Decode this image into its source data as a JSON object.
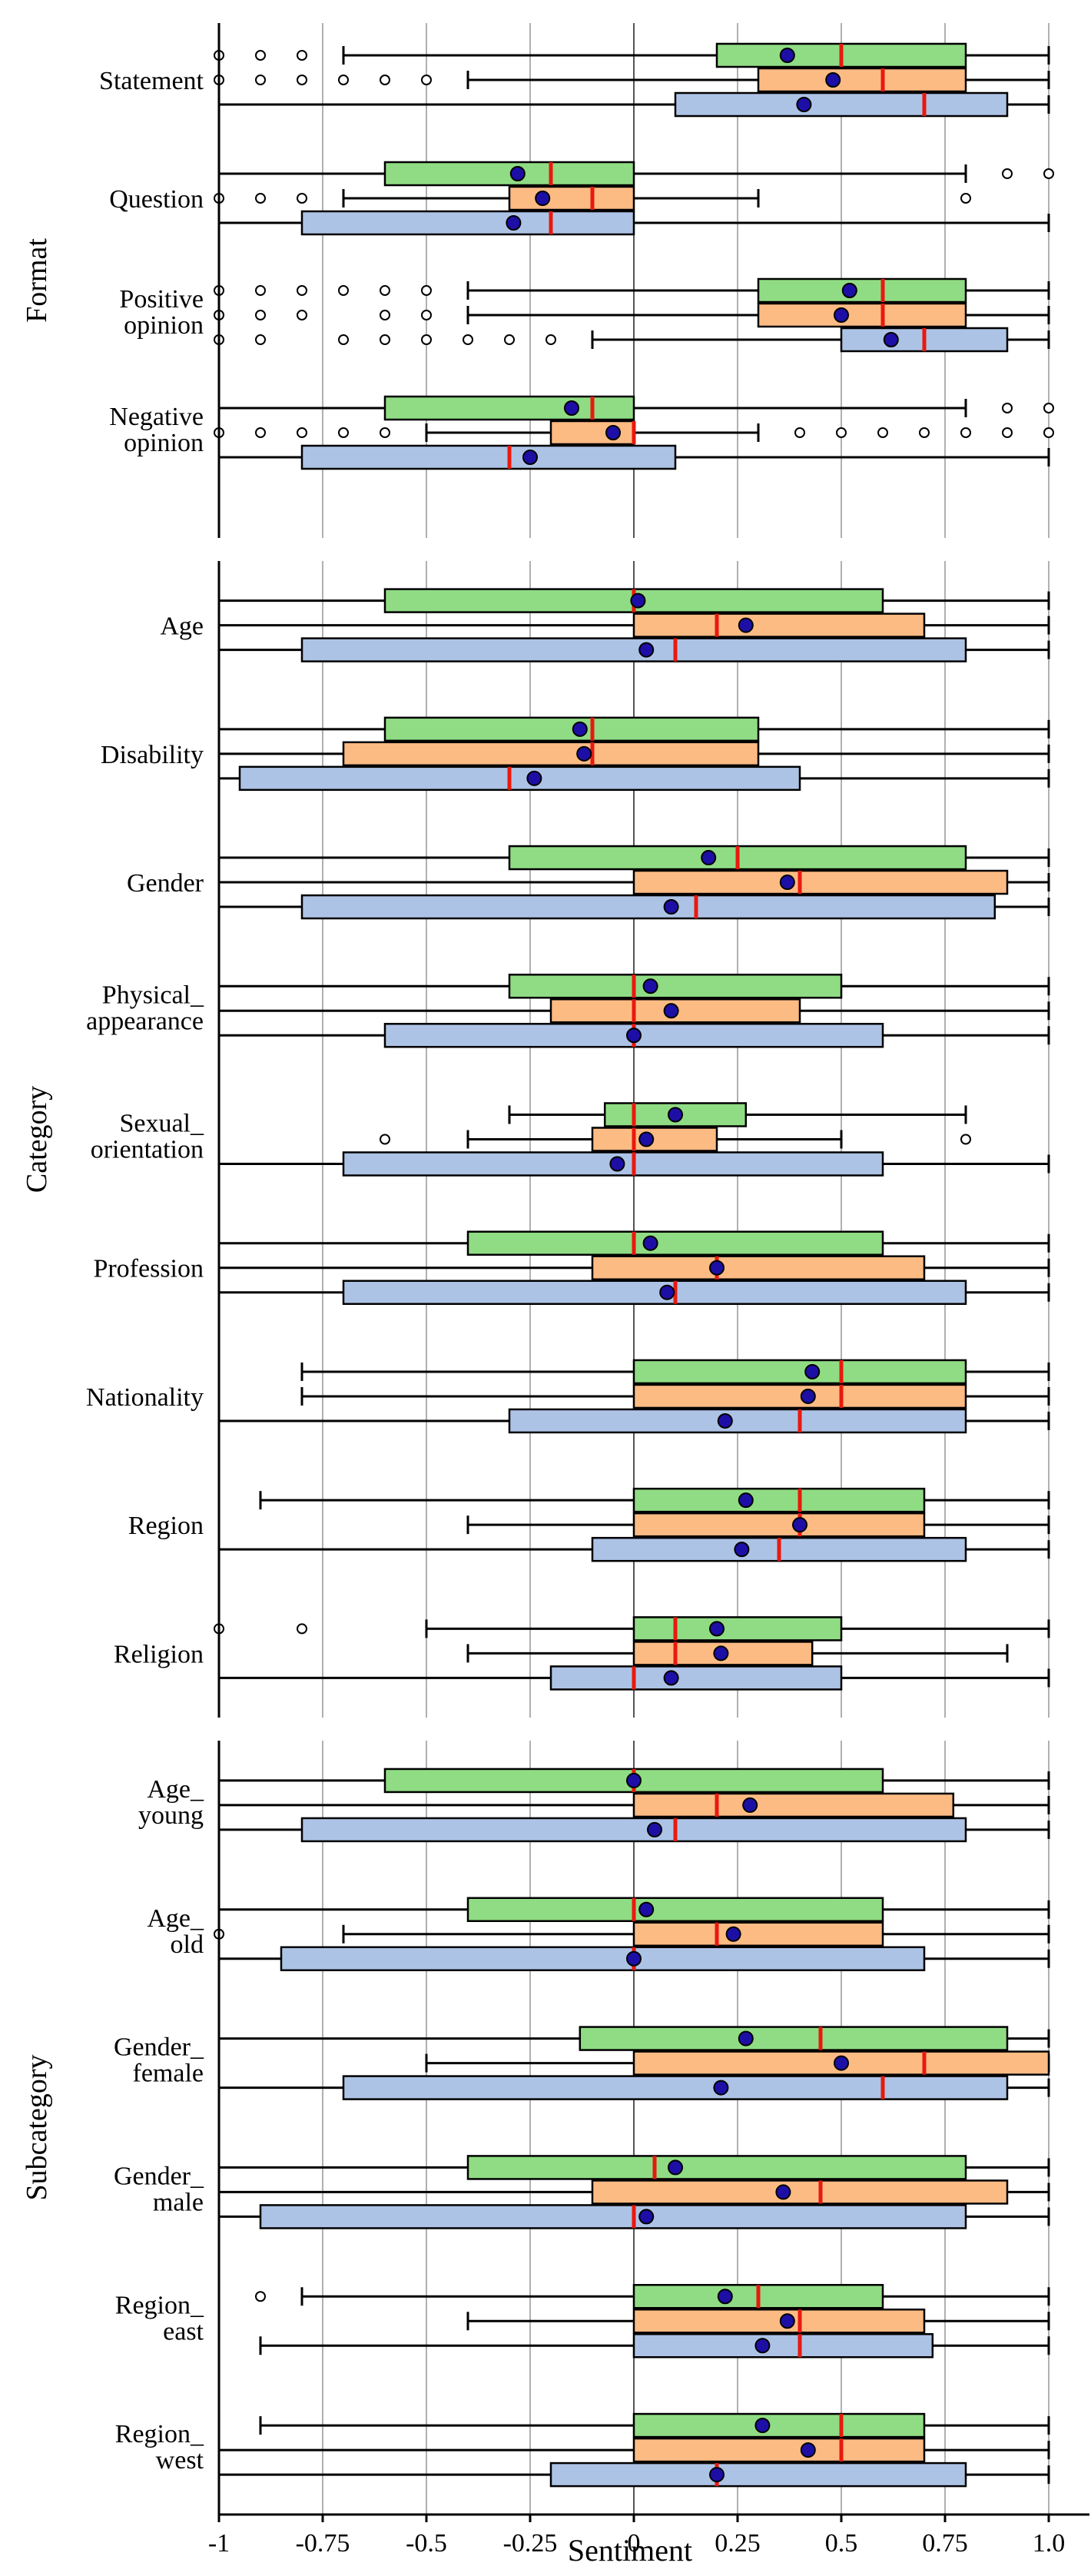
{
  "colors": {
    "series_1": "#90dc84",
    "series_2": "#fdbb84",
    "series_3": "#adc3e6",
    "median": "#e8190e",
    "mean_fill": "#1d0fa6",
    "grid": "#b0b0b0",
    "axis": "#000000"
  },
  "chart_data": {
    "type": "box",
    "xlabel": "Sentiment",
    "xlim": [
      -1,
      1.1
    ],
    "x_ticks": [
      -1,
      -0.75,
      -0.5,
      -0.25,
      0,
      0.25,
      0.5,
      0.75,
      1.0
    ],
    "x_tick_labels": [
      "-1",
      "-0.75",
      "-0.5",
      "-0.25",
      "0",
      "0.25",
      "0.5",
      "0.75",
      "1.0"
    ],
    "series_names": [
      "series_1",
      "series_2",
      "series_3"
    ],
    "panels": [
      {
        "title": "Format",
        "groups": [
          {
            "label": [
              "Statement"
            ],
            "boxes": [
              {
                "whisker_low": -0.7,
                "q1": 0.2,
                "median": 0.5,
                "q3": 0.8,
                "whisker_high": 1.0,
                "mean": 0.37,
                "outliers": [
                  -1,
                  -0.9,
                  -0.8
                ]
              },
              {
                "whisker_low": -0.4,
                "q1": 0.3,
                "median": 0.6,
                "q3": 0.8,
                "whisker_high": 1.0,
                "mean": 0.48,
                "outliers": [
                  -1,
                  -0.9,
                  -0.8,
                  -0.7,
                  -0.6,
                  -0.5
                ]
              },
              {
                "whisker_low": -1.0,
                "q1": 0.1,
                "median": 0.7,
                "q3": 0.9,
                "whisker_high": 1.0,
                "mean": 0.41,
                "outliers": []
              }
            ]
          },
          {
            "label": [
              "Question"
            ],
            "boxes": [
              {
                "whisker_low": -1.0,
                "q1": -0.6,
                "median": -0.2,
                "q3": 0.0,
                "whisker_high": 0.8,
                "mean": -0.28,
                "outliers": [
                  0.9,
                  1.0
                ]
              },
              {
                "whisker_low": -0.7,
                "q1": -0.3,
                "median": -0.1,
                "q3": 0.0,
                "whisker_high": 0.3,
                "mean": -0.22,
                "outliers": [
                  -1,
                  -0.9,
                  -0.8,
                  0.8
                ]
              },
              {
                "whisker_low": -1.0,
                "q1": -0.8,
                "median": -0.2,
                "q3": 0.0,
                "whisker_high": 1.0,
                "mean": -0.29,
                "outliers": []
              }
            ]
          },
          {
            "label": [
              "Positive",
              "opinion"
            ],
            "boxes": [
              {
                "whisker_low": -0.4,
                "q1": 0.3,
                "median": 0.6,
                "q3": 0.8,
                "whisker_high": 1.0,
                "mean": 0.52,
                "outliers": [
                  -1,
                  -0.9,
                  -0.8,
                  -0.7,
                  -0.6,
                  -0.5
                ]
              },
              {
                "whisker_low": -0.4,
                "q1": 0.3,
                "median": 0.6,
                "q3": 0.8,
                "whisker_high": 1.0,
                "mean": 0.5,
                "outliers": [
                  -1,
                  -0.9,
                  -0.8,
                  -0.6,
                  -0.5
                ]
              },
              {
                "whisker_low": -0.1,
                "q1": 0.5,
                "median": 0.7,
                "q3": 0.9,
                "whisker_high": 1.0,
                "mean": 0.62,
                "outliers": [
                  -1,
                  -0.9,
                  -0.7,
                  -0.6,
                  -0.5,
                  -0.4,
                  -0.3,
                  -0.2
                ]
              }
            ]
          },
          {
            "label": [
              "Negative",
              "opinion"
            ],
            "boxes": [
              {
                "whisker_low": -1.0,
                "q1": -0.6,
                "median": -0.1,
                "q3": 0.0,
                "whisker_high": 0.8,
                "mean": -0.15,
                "outliers": [
                  0.9,
                  1.0
                ]
              },
              {
                "whisker_low": -0.5,
                "q1": -0.2,
                "median": 0.0,
                "q3": 0.0,
                "whisker_high": 0.3,
                "mean": -0.05,
                "outliers": [
                  -1,
                  -0.9,
                  -0.8,
                  -0.7,
                  -0.6,
                  0.4,
                  0.5,
                  0.6,
                  0.7,
                  0.8,
                  0.9,
                  1.0
                ]
              },
              {
                "whisker_low": -1.0,
                "q1": -0.8,
                "median": -0.3,
                "q3": 0.1,
                "whisker_high": 1.0,
                "mean": -0.25,
                "outliers": []
              }
            ]
          }
        ]
      },
      {
        "title": "Category",
        "groups": [
          {
            "label": [
              "Age"
            ],
            "boxes": [
              {
                "whisker_low": -1.0,
                "q1": -0.6,
                "median": 0.0,
                "q3": 0.6,
                "whisker_high": 1.0,
                "mean": 0.01,
                "outliers": []
              },
              {
                "whisker_low": -1.0,
                "q1": 0.0,
                "median": 0.2,
                "q3": 0.7,
                "whisker_high": 1.0,
                "mean": 0.27,
                "outliers": []
              },
              {
                "whisker_low": -1.0,
                "q1": -0.8,
                "median": 0.1,
                "q3": 0.8,
                "whisker_high": 1.0,
                "mean": 0.03,
                "outliers": []
              }
            ]
          },
          {
            "label": [
              "Disability"
            ],
            "boxes": [
              {
                "whisker_low": -1.0,
                "q1": -0.6,
                "median": -0.1,
                "q3": 0.3,
                "whisker_high": 1.0,
                "mean": -0.13,
                "outliers": []
              },
              {
                "whisker_low": -1.0,
                "q1": -0.7,
                "median": -0.1,
                "q3": 0.3,
                "whisker_high": 1.0,
                "mean": -0.12,
                "outliers": []
              },
              {
                "whisker_low": -1.0,
                "q1": -0.95,
                "median": -0.3,
                "q3": 0.4,
                "whisker_high": 1.0,
                "mean": -0.24,
                "outliers": []
              }
            ]
          },
          {
            "label": [
              "Gender"
            ],
            "boxes": [
              {
                "whisker_low": -1.0,
                "q1": -0.3,
                "median": 0.25,
                "q3": 0.8,
                "whisker_high": 1.0,
                "mean": 0.18,
                "outliers": []
              },
              {
                "whisker_low": -1.0,
                "q1": 0.0,
                "median": 0.4,
                "q3": 0.9,
                "whisker_high": 1.0,
                "mean": 0.37,
                "outliers": []
              },
              {
                "whisker_low": -1.0,
                "q1": -0.8,
                "median": 0.15,
                "q3": 0.87,
                "whisker_high": 1.0,
                "mean": 0.09,
                "outliers": []
              }
            ]
          },
          {
            "label": [
              "Physical_",
              "appearance"
            ],
            "boxes": [
              {
                "whisker_low": -1.0,
                "q1": -0.3,
                "median": 0.0,
                "q3": 0.5,
                "whisker_high": 1.0,
                "mean": 0.04,
                "outliers": []
              },
              {
                "whisker_low": -1.0,
                "q1": -0.2,
                "median": 0.0,
                "q3": 0.4,
                "whisker_high": 1.0,
                "mean": 0.09,
                "outliers": []
              },
              {
                "whisker_low": -1.0,
                "q1": -0.6,
                "median": 0.0,
                "q3": 0.6,
                "whisker_high": 1.0,
                "mean": 0.0,
                "outliers": []
              }
            ]
          },
          {
            "label": [
              "Sexual_",
              "orientation"
            ],
            "boxes": [
              {
                "whisker_low": -0.3,
                "q1": -0.07,
                "median": 0.0,
                "q3": 0.27,
                "whisker_high": 0.8,
                "mean": 0.1,
                "outliers": []
              },
              {
                "whisker_low": -0.4,
                "q1": -0.1,
                "median": 0.0,
                "q3": 0.2,
                "whisker_high": 0.5,
                "mean": 0.03,
                "outliers": [
                  -0.6,
                  0.8
                ]
              },
              {
                "whisker_low": -1.0,
                "q1": -0.7,
                "median": 0.0,
                "q3": 0.6,
                "whisker_high": 1.0,
                "mean": -0.04,
                "outliers": []
              }
            ]
          },
          {
            "label": [
              "Profession"
            ],
            "boxes": [
              {
                "whisker_low": -1.0,
                "q1": -0.4,
                "median": 0.0,
                "q3": 0.6,
                "whisker_high": 1.0,
                "mean": 0.04,
                "outliers": []
              },
              {
                "whisker_low": -1.0,
                "q1": -0.1,
                "median": 0.2,
                "q3": 0.7,
                "whisker_high": 1.0,
                "mean": 0.2,
                "outliers": []
              },
              {
                "whisker_low": -1.0,
                "q1": -0.7,
                "median": 0.1,
                "q3": 0.8,
                "whisker_high": 1.0,
                "mean": 0.08,
                "outliers": []
              }
            ]
          },
          {
            "label": [
              "Nationality"
            ],
            "boxes": [
              {
                "whisker_low": -0.8,
                "q1": 0.0,
                "median": 0.5,
                "q3": 0.8,
                "whisker_high": 1.0,
                "mean": 0.43,
                "outliers": []
              },
              {
                "whisker_low": -0.8,
                "q1": 0.0,
                "median": 0.5,
                "q3": 0.8,
                "whisker_high": 1.0,
                "mean": 0.42,
                "outliers": []
              },
              {
                "whisker_low": -1.0,
                "q1": -0.3,
                "median": 0.4,
                "q3": 0.8,
                "whisker_high": 1.0,
                "mean": 0.22,
                "outliers": []
              }
            ]
          },
          {
            "label": [
              "Region"
            ],
            "boxes": [
              {
                "whisker_low": -0.9,
                "q1": 0.0,
                "median": 0.4,
                "q3": 0.7,
                "whisker_high": 1.0,
                "mean": 0.27,
                "outliers": []
              },
              {
                "whisker_low": -0.4,
                "q1": 0.0,
                "median": 0.4,
                "q3": 0.7,
                "whisker_high": 1.0,
                "mean": 0.4,
                "outliers": []
              },
              {
                "whisker_low": -1.0,
                "q1": -0.1,
                "median": 0.35,
                "q3": 0.8,
                "whisker_high": 1.0,
                "mean": 0.26,
                "outliers": []
              }
            ]
          },
          {
            "label": [
              "Religion"
            ],
            "boxes": [
              {
                "whisker_low": -0.5,
                "q1": 0.0,
                "median": 0.1,
                "q3": 0.5,
                "whisker_high": 1.0,
                "mean": 0.2,
                "outliers": [
                  -1,
                  -0.8
                ]
              },
              {
                "whisker_low": -0.4,
                "q1": 0.0,
                "median": 0.1,
                "q3": 0.43,
                "whisker_high": 0.9,
                "mean": 0.21,
                "outliers": []
              },
              {
                "whisker_low": -1.0,
                "q1": -0.2,
                "median": 0.0,
                "q3": 0.5,
                "whisker_high": 1.0,
                "mean": 0.09,
                "outliers": []
              }
            ]
          }
        ]
      },
      {
        "title": "Subcategory",
        "groups": [
          {
            "label": [
              "Age_",
              "young"
            ],
            "boxes": [
              {
                "whisker_low": -1.0,
                "q1": -0.6,
                "median": 0.0,
                "q3": 0.6,
                "whisker_high": 1.0,
                "mean": 0.0,
                "outliers": []
              },
              {
                "whisker_low": -1.0,
                "q1": 0.0,
                "median": 0.2,
                "q3": 0.77,
                "whisker_high": 1.0,
                "mean": 0.28,
                "outliers": []
              },
              {
                "whisker_low": -1.0,
                "q1": -0.8,
                "median": 0.1,
                "q3": 0.8,
                "whisker_high": 1.0,
                "mean": 0.05,
                "outliers": []
              }
            ]
          },
          {
            "label": [
              "Age_",
              "old"
            ],
            "boxes": [
              {
                "whisker_low": -1.0,
                "q1": -0.4,
                "median": 0.0,
                "q3": 0.6,
                "whisker_high": 1.0,
                "mean": 0.03,
                "outliers": []
              },
              {
                "whisker_low": -0.7,
                "q1": 0.0,
                "median": 0.2,
                "q3": 0.6,
                "whisker_high": 1.0,
                "mean": 0.24,
                "outliers": [
                  -1
                ]
              },
              {
                "whisker_low": -1.0,
                "q1": -0.85,
                "median": 0.0,
                "q3": 0.7,
                "whisker_high": 1.0,
                "mean": 0.0,
                "outliers": []
              }
            ]
          },
          {
            "label": [
              "Gender_",
              "female"
            ],
            "boxes": [
              {
                "whisker_low": -1.0,
                "q1": -0.13,
                "median": 0.45,
                "q3": 0.9,
                "whisker_high": 1.0,
                "mean": 0.27,
                "outliers": []
              },
              {
                "whisker_low": -0.5,
                "q1": 0.0,
                "median": 0.7,
                "q3": 1.0,
                "whisker_high": 1.0,
                "mean": 0.5,
                "outliers": []
              },
              {
                "whisker_low": -1.0,
                "q1": -0.7,
                "median": 0.6,
                "q3": 0.9,
                "whisker_high": 1.0,
                "mean": 0.21,
                "outliers": []
              }
            ]
          },
          {
            "label": [
              "Gender_",
              "male"
            ],
            "boxes": [
              {
                "whisker_low": -1.0,
                "q1": -0.4,
                "median": 0.05,
                "q3": 0.8,
                "whisker_high": 1.0,
                "mean": 0.1,
                "outliers": []
              },
              {
                "whisker_low": -1.0,
                "q1": -0.1,
                "median": 0.45,
                "q3": 0.9,
                "whisker_high": 1.0,
                "mean": 0.36,
                "outliers": []
              },
              {
                "whisker_low": -1.0,
                "q1": -0.9,
                "median": 0.0,
                "q3": 0.8,
                "whisker_high": 1.0,
                "mean": 0.03,
                "outliers": []
              }
            ]
          },
          {
            "label": [
              "Region_",
              "east"
            ],
            "boxes": [
              {
                "whisker_low": -0.8,
                "q1": 0.0,
                "median": 0.3,
                "q3": 0.6,
                "whisker_high": 1.0,
                "mean": 0.22,
                "outliers": [
                  -0.9
                ]
              },
              {
                "whisker_low": -0.4,
                "q1": 0.0,
                "median": 0.4,
                "q3": 0.7,
                "whisker_high": 1.0,
                "mean": 0.37,
                "outliers": []
              },
              {
                "whisker_low": -0.9,
                "q1": 0.0,
                "median": 0.4,
                "q3": 0.72,
                "whisker_high": 1.0,
                "mean": 0.31,
                "outliers": []
              }
            ]
          },
          {
            "label": [
              "Region_",
              "west"
            ],
            "boxes": [
              {
                "whisker_low": -0.9,
                "q1": 0.0,
                "median": 0.5,
                "q3": 0.7,
                "whisker_high": 1.0,
                "mean": 0.31,
                "outliers": []
              },
              {
                "whisker_low": -1.0,
                "q1": 0.0,
                "median": 0.5,
                "q3": 0.7,
                "whisker_high": 1.0,
                "mean": 0.42,
                "outliers": []
              },
              {
                "whisker_low": -1.0,
                "q1": -0.2,
                "median": 0.2,
                "q3": 0.8,
                "whisker_high": 1.0,
                "mean": 0.2,
                "outliers": []
              }
            ]
          }
        ]
      }
    ]
  }
}
